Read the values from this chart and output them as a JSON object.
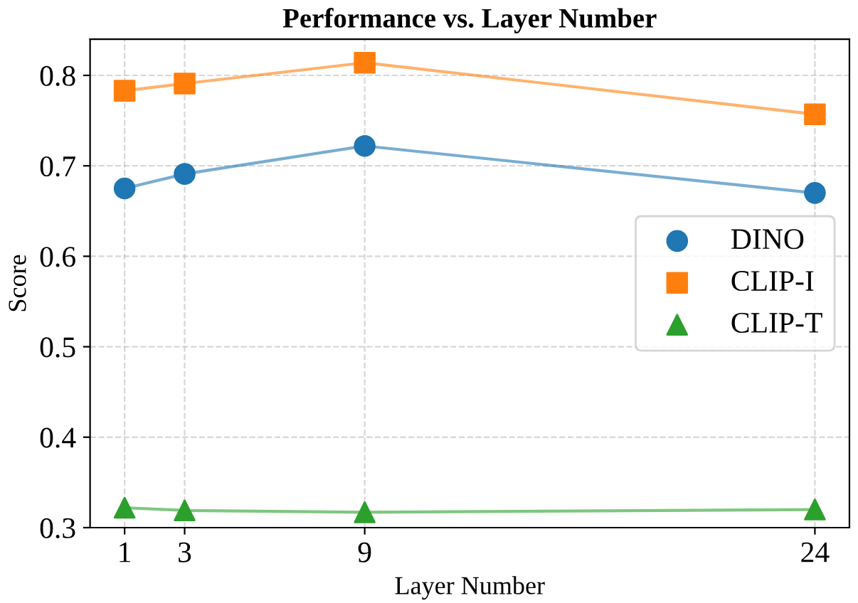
{
  "chart_data": {
    "type": "line",
    "title": "Performance vs. Layer Number",
    "xlabel": "Layer Number",
    "ylabel": "Score",
    "x": [
      1,
      3,
      9,
      24
    ],
    "series": [
      {
        "name": "DINO",
        "color": "#1f77b4",
        "marker": "circle",
        "values": [
          0.675,
          0.691,
          0.722,
          0.67
        ]
      },
      {
        "name": "CLIP-I",
        "color": "#ff7f0e",
        "marker": "square",
        "values": [
          0.783,
          0.791,
          0.814,
          0.757
        ]
      },
      {
        "name": "CLIP-T",
        "color": "#2ca02c",
        "marker": "triangle",
        "values": [
          0.322,
          0.319,
          0.317,
          0.32
        ]
      }
    ],
    "xlim": [
      -0.15,
      25.15
    ],
    "xticks": [
      1,
      3,
      9,
      24
    ],
    "ylim": [
      0.3,
      0.84
    ],
    "yticks": [
      0.3,
      0.4,
      0.5,
      0.6,
      0.7,
      0.8
    ],
    "grid": true,
    "legend": "right",
    "line_style": "solid"
  }
}
